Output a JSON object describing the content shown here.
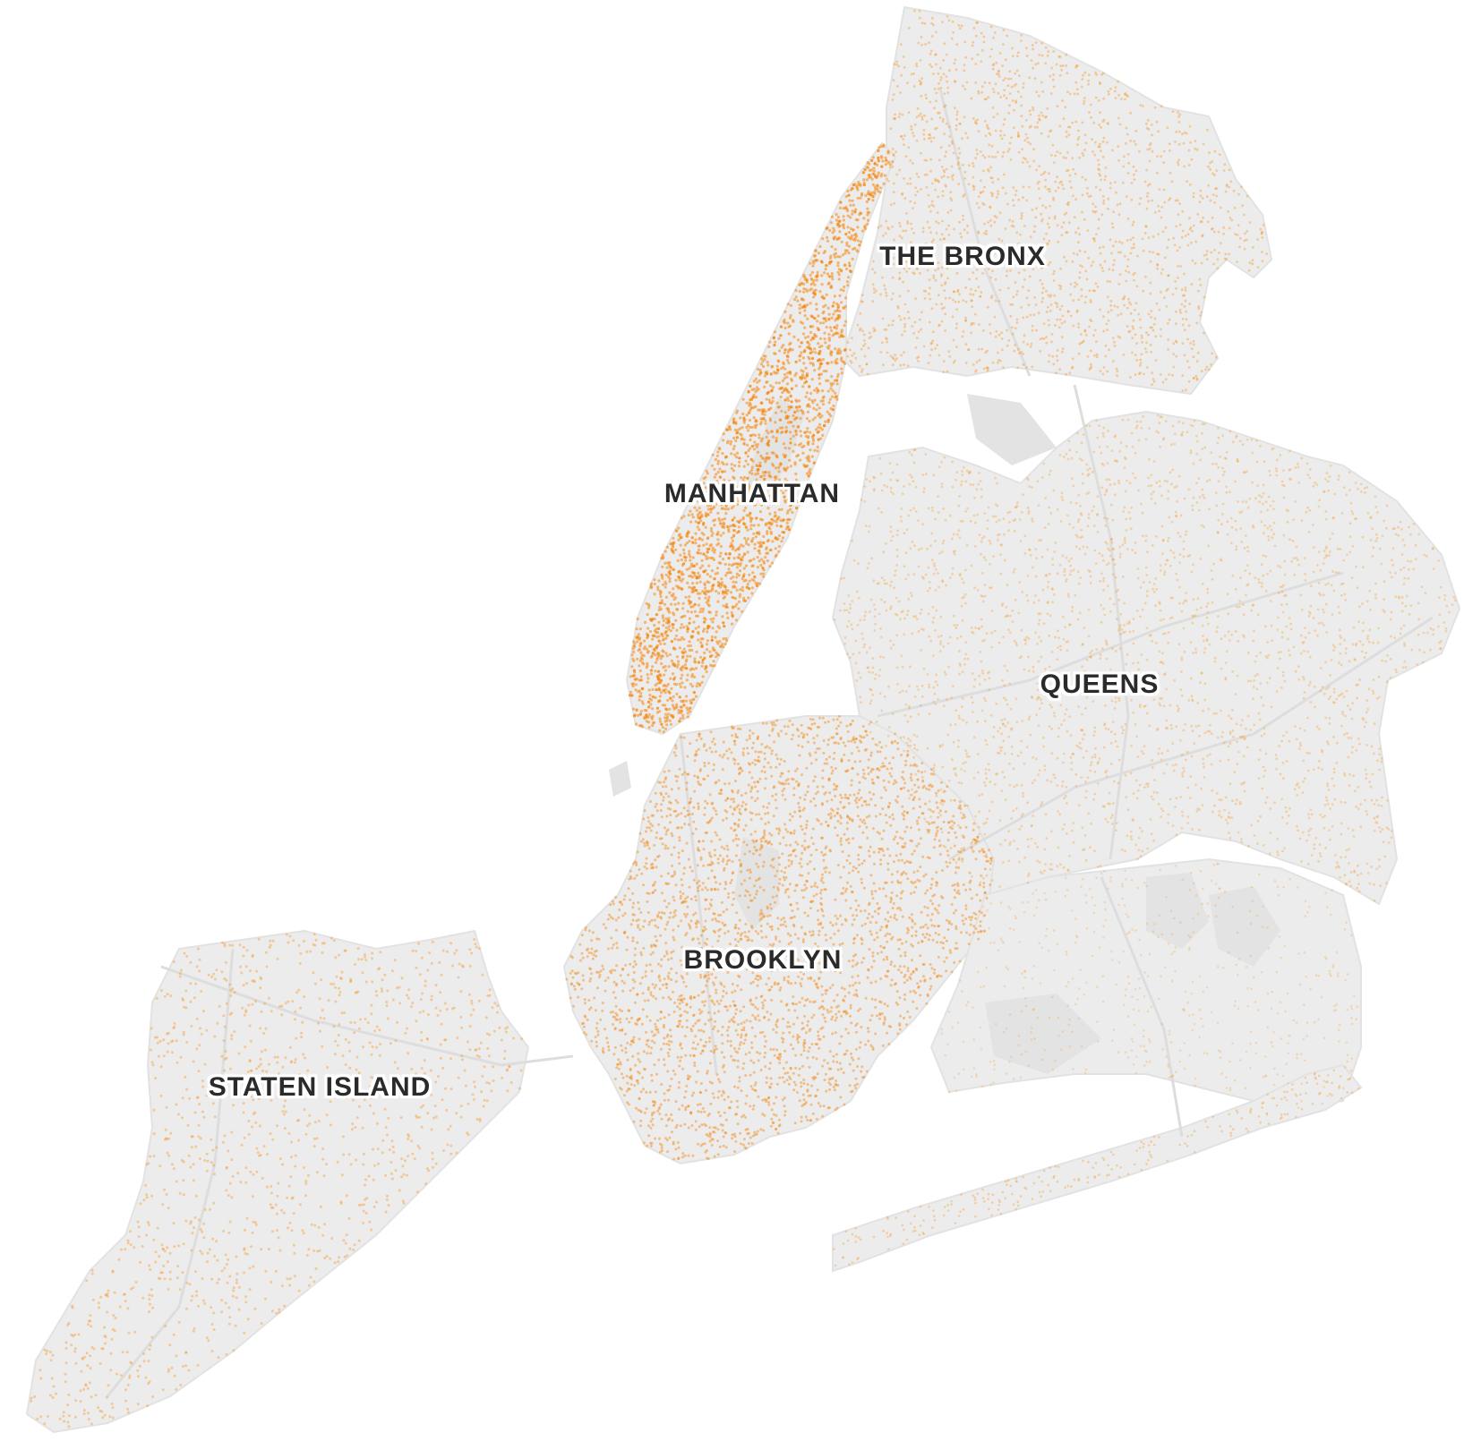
{
  "map": {
    "colors": {
      "land": "#ececec",
      "land_edge": "#e2e2e2",
      "road": "#dddddd",
      "park": "#e3e3e3",
      "dot": "#f7941d",
      "dot_dense": "#f5870f"
    },
    "labels": {
      "bronx": "THE BRONX",
      "manhattan": "MANHATTAN",
      "queens": "QUEENS",
      "brooklyn": "BROOKLYN",
      "staten_island": "STATEN ISLAND"
    }
  }
}
